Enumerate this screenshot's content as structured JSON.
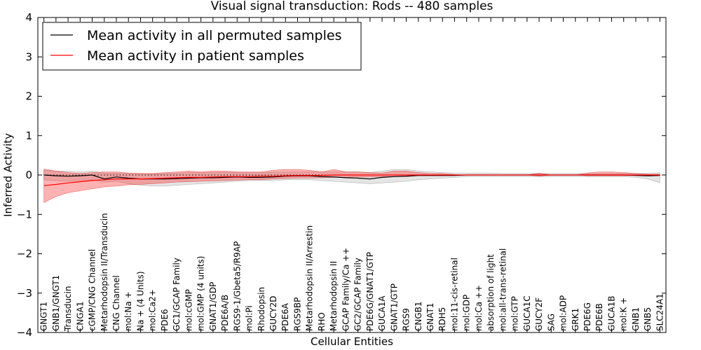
{
  "chart_data": {
    "type": "line",
    "title": "Visual signal transduction: Rods -- 480 samples",
    "xlabel": "Cellular Entities",
    "ylabel": "Inferred Activity",
    "ylim": [
      -4,
      4
    ],
    "yticks": [
      -4,
      -3,
      -2,
      -1,
      0,
      1,
      2,
      3,
      4
    ],
    "ytick_labels": [
      "−4",
      "−3",
      "−2",
      "−1",
      "0",
      "1",
      "2",
      "3",
      "4"
    ],
    "legend_position": "upper-left",
    "categories": [
      "GNGT1",
      "GNB1/GNGT1",
      "Transducin",
      "CNGA1",
      "cGMP/CNG Channel",
      "Metarhodopsin II/Transducin",
      "CNG Channel",
      "mol:Na +",
      "Na + (4 Units)",
      "mol:Ca2+",
      "PDE6",
      "GC1/GCAP Family",
      "mol:cGMP",
      "mol:GMP (4 units)",
      "GNAT1/GDP",
      "PDE6A/B",
      "RGS9-1/Gbeta5/R9AP",
      "mol:Pi",
      "Rhodopsin",
      "GUCY2D",
      "PDE6A",
      "RGS9BP",
      "Metarhodopsin II/Arrestin",
      "RHO",
      "Metarhodopsin II",
      "GCAP Family/Ca ++",
      "GC2/GCAP Family",
      "PDE6G/GNAT1/GTP",
      "GUCA1A",
      "GNAT1/GTP",
      "RGS9",
      "CNGB1",
      "GNAT1",
      "RDH5",
      "mol:11-cis-retinal",
      "mol:GDP",
      "mol:Ca ++",
      "absorption of light",
      "mol:all-trans-retinal",
      "mol:GTP",
      "GUCA1C",
      "GUCY2F",
      "SAG",
      "mol:ADP",
      "GRK1",
      "PDE6G",
      "PDE6B",
      "GUCA1B",
      "mol:K +",
      "GNB1",
      "GNB5",
      "SLC24A1"
    ],
    "series": [
      {
        "name": "Mean activity in all permuted samples",
        "color": "#000000",
        "values": [
          0.0,
          -0.02,
          -0.03,
          -0.02,
          0.0,
          -0.1,
          -0.05,
          -0.08,
          -0.1,
          -0.1,
          -0.1,
          -0.09,
          -0.08,
          -0.07,
          -0.07,
          -0.06,
          -0.05,
          -0.06,
          -0.06,
          -0.05,
          -0.03,
          -0.02,
          -0.02,
          -0.04,
          -0.05,
          -0.07,
          -0.08,
          -0.1,
          -0.06,
          -0.04,
          -0.03,
          -0.01,
          -0.01,
          -0.01,
          -0.01,
          0.0,
          0.0,
          0.0,
          0.0,
          0.0,
          0.0,
          0.0,
          0.0,
          0.0,
          0.0,
          0.0,
          0.0,
          0.0,
          0.0,
          -0.01,
          -0.02,
          -0.01
        ],
        "band_upper": [
          0.12,
          0.1,
          0.1,
          0.08,
          0.1,
          0.05,
          0.05,
          0.04,
          0.04,
          0.03,
          0.04,
          0.05,
          0.06,
          0.06,
          0.06,
          0.07,
          0.07,
          0.06,
          0.06,
          0.07,
          0.07,
          0.08,
          0.08,
          0.08,
          0.08,
          0.08,
          0.08,
          0.06,
          0.1,
          0.14,
          0.14,
          0.1,
          0.08,
          0.06,
          0.05,
          0.05,
          0.05,
          0.05,
          0.04,
          0.04,
          0.04,
          0.04,
          0.04,
          0.04,
          0.04,
          0.04,
          0.04,
          0.04,
          0.04,
          0.04,
          0.04,
          0.06
        ],
        "band_lower": [
          -0.12,
          -0.14,
          -0.16,
          -0.14,
          -0.12,
          -0.18,
          -0.16,
          -0.22,
          -0.26,
          -0.28,
          -0.28,
          -0.26,
          -0.24,
          -0.22,
          -0.2,
          -0.18,
          -0.16,
          -0.14,
          -0.14,
          -0.14,
          -0.12,
          -0.12,
          -0.12,
          -0.14,
          -0.16,
          -0.18,
          -0.2,
          -0.22,
          -0.2,
          -0.18,
          -0.16,
          -0.12,
          -0.1,
          -0.08,
          -0.06,
          -0.04,
          -0.04,
          -0.04,
          -0.04,
          -0.04,
          -0.04,
          -0.04,
          -0.04,
          -0.04,
          -0.04,
          -0.04,
          -0.04,
          -0.04,
          -0.04,
          -0.06,
          -0.1,
          -0.2
        ]
      },
      {
        "name": "Mean activity in patient samples",
        "color": "#ff0000",
        "values": [
          -0.27,
          -0.24,
          -0.2,
          -0.17,
          -0.14,
          -0.12,
          -0.1,
          -0.1,
          -0.1,
          -0.09,
          -0.08,
          -0.07,
          -0.06,
          -0.06,
          -0.05,
          -0.04,
          -0.04,
          -0.04,
          -0.03,
          -0.03,
          -0.02,
          -0.01,
          -0.01,
          -0.01,
          0.0,
          0.0,
          0.0,
          0.0,
          0.0,
          0.0,
          0.0,
          0.0,
          0.0,
          0.0,
          0.0,
          0.0,
          0.0,
          0.0,
          0.0,
          0.0,
          0.0,
          0.0,
          0.0,
          0.0,
          0.0,
          0.0,
          0.0,
          0.0,
          0.0,
          0.0,
          0.0,
          0.0
        ],
        "band_upper": [
          0.15,
          0.1,
          0.06,
          0.04,
          0.06,
          0.08,
          0.08,
          0.05,
          0.04,
          0.04,
          0.06,
          0.08,
          0.1,
          0.08,
          0.1,
          0.1,
          0.08,
          0.08,
          0.08,
          0.12,
          0.14,
          0.14,
          0.12,
          0.08,
          0.14,
          0.08,
          0.08,
          0.06,
          0.05,
          0.1,
          0.1,
          0.06,
          0.04,
          0.04,
          0.01,
          0.0,
          0.0,
          0.0,
          0.0,
          0.0,
          0.0,
          0.05,
          0.0,
          0.0,
          0.0,
          0.05,
          0.08,
          0.08,
          0.06,
          0.04,
          0.02,
          0.02
        ],
        "band_lower": [
          -0.7,
          -0.55,
          -0.45,
          -0.4,
          -0.35,
          -0.3,
          -0.28,
          -0.25,
          -0.24,
          -0.22,
          -0.2,
          -0.18,
          -0.17,
          -0.16,
          -0.15,
          -0.14,
          -0.13,
          -0.12,
          -0.12,
          -0.1,
          -0.09,
          -0.08,
          -0.08,
          -0.07,
          -0.06,
          -0.06,
          -0.05,
          -0.05,
          -0.04,
          -0.04,
          -0.04,
          -0.02,
          -0.02,
          -0.02,
          -0.01,
          0.0,
          0.0,
          0.0,
          0.0,
          0.0,
          0.0,
          -0.03,
          0.0,
          0.0,
          0.0,
          -0.02,
          -0.02,
          -0.02,
          -0.02,
          -0.01,
          -0.01,
          -0.01
        ]
      }
    ],
    "reference_line": {
      "y": 0,
      "style": "dotted"
    }
  }
}
